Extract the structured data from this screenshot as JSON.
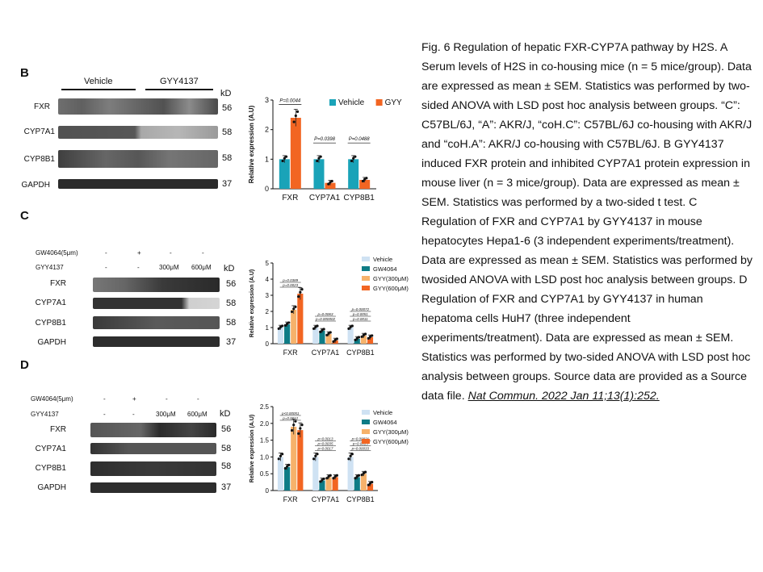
{
  "panels": {
    "B": {
      "letter": "B",
      "groups": [
        "Vehicle",
        "GYY4137"
      ],
      "kd_label": "kD",
      "proteins": [
        "FXR",
        "CYP7A1",
        "CYP8B1",
        "GAPDH"
      ],
      "kd": [
        "56",
        "58",
        "58",
        "37"
      ]
    },
    "C": {
      "letter": "C",
      "row1_label": "GW4064(5μm)",
      "row1_vals": [
        "-",
        "+",
        "-",
        "-"
      ],
      "row2_label": "GYY4137",
      "row2_vals": [
        "-",
        "-",
        "300μM",
        "600μM"
      ],
      "kd_label": "kD",
      "proteins": [
        "FXR",
        "CYP7A1",
        "CYP8B1",
        "GAPDH"
      ],
      "kd": [
        "56",
        "58",
        "58",
        "37"
      ]
    },
    "D": {
      "letter": "D",
      "row1_label": "GW4064(5μm)",
      "row1_vals": [
        "-",
        "+",
        "-",
        "-"
      ],
      "row2_label": "GYY4137",
      "row2_vals": [
        "-",
        "-",
        "300μM",
        "600μM"
      ],
      "kd_label": "kD",
      "proteins": [
        "FXR",
        "CYP7A1",
        "CYP8B1",
        "GAPDH"
      ],
      "kd": [
        "56",
        "58",
        "58",
        "37"
      ]
    }
  },
  "chart_data": [
    {
      "type": "bar",
      "panel": "B",
      "ylabel": "Relative expression (A.U)",
      "ylim": [
        0,
        3
      ],
      "yticks": [
        "0",
        "1",
        "2",
        "3"
      ],
      "categories": [
        "FXR",
        "CYP7A1",
        "CYP8B1"
      ],
      "series": [
        {
          "name": "Vehicle",
          "color": "#1aa3b8",
          "values": [
            1.0,
            1.0,
            1.0
          ]
        },
        {
          "name": "GYY",
          "color": "#f26522",
          "values": [
            2.4,
            0.2,
            0.3
          ]
        }
      ],
      "pvalues": [
        "P=0.0044",
        "P=0.0398",
        "P=0.0488"
      ],
      "legend": "top-right"
    },
    {
      "type": "bar",
      "panel": "C",
      "ylabel": "Relative expression (A.U)",
      "ylim": [
        0,
        5
      ],
      "yticks": [
        "0",
        "1",
        "2",
        "3",
        "4",
        "5"
      ],
      "categories": [
        "FXR",
        "CYP7A1",
        "CYP8B1"
      ],
      "series": [
        {
          "name": "Vehicle",
          "color": "#cfe2f3",
          "values": [
            1.0,
            1.0,
            1.0
          ]
        },
        {
          "name": "GW4064",
          "color": "#0e7c86",
          "values": [
            1.2,
            0.8,
            0.3
          ]
        },
        {
          "name": "GYY(300μM)",
          "color": "#f6b26b",
          "values": [
            2.1,
            0.6,
            0.5
          ]
        },
        {
          "name": "GYY(600μM)",
          "color": "#f26522",
          "values": [
            3.1,
            0.2,
            0.4
          ]
        }
      ],
      "pvalues": [
        "p=0.0023",
        "p=0.0389",
        "p=0.000002",
        "p=0.0063",
        "p=0.0011",
        "p=0.0051",
        "p=0.00072"
      ],
      "legend": "top-right"
    },
    {
      "type": "bar",
      "panel": "D",
      "ylabel": "Relative expression (A.U)",
      "ylim": [
        0,
        2.5
      ],
      "yticks": [
        "0",
        "0.5",
        "1.0",
        "1.5",
        "2.0",
        "2.5"
      ],
      "categories": [
        "FXR",
        "CYP7A1",
        "CYP8B1"
      ],
      "series": [
        {
          "name": "Vehicle",
          "color": "#cfe2f3",
          "values": [
            1.0,
            1.0,
            1.0
          ]
        },
        {
          "name": "GW4064",
          "color": "#0e7c86",
          "values": [
            0.7,
            0.3,
            0.4
          ]
        },
        {
          "name": "GYY(300μM)",
          "color": "#f6b26b",
          "values": [
            1.9,
            0.4,
            0.5
          ]
        },
        {
          "name": "GYY(600μM)",
          "color": "#f26522",
          "values": [
            1.8,
            0.4,
            0.2
          ]
        }
      ],
      "pvalues": [
        "p=0.0012",
        "p<0.00051",
        "p=0.0017",
        "p=0.0035",
        "p=0.0013",
        "p=0.00033",
        "p=0.0015",
        "p=0.00021"
      ],
      "legend": "top-right"
    }
  ],
  "caption": {
    "text": "Fig. 6 Regulation of hepatic FXR-CYP7A pathway by H2S. A Serum levels of H2S in co-housing mice (n = 5 mice/group). Data are expressed as mean ± SEM. Statistics was performed by two-sided ANOVA with LSD post hoc analysis between groups. “C”: C57BL/6J, “A”: AKR/J, “coH.C”: C57BL/6J co-housing with AKR/J and “coH.A”: AKR/J co-housing with C57BL/6J. B GYY4137 induced FXR protein and inhibited CYP7A1 protein expression in mouse liver (n = 3 mice/group). Data are expressed as mean ± SEM. Statistics was performed by a two-sided t test. C Regulation of FXR and CYP7A1 by GYY4137 in mouse hepatocytes Hepa1-6 (3 independent experiments/treatment). Data are expressed as mean ± SEM. Statistics was performed by twosided ANOVA with LSD post hoc analysis between groups. D Regulation of FXR and CYP7A1 by GYY4137 in human hepatoma cells HuH7 (three independent experiments/treatment). Data are expressed as mean ± SEM. Statistics was performed by two-sided ANOVA with LSD post hoc analysis between groups. Source data are provided as a Source data file. ",
    "citation": "Nat Commun. 2022 Jan 11;13(1):252."
  }
}
